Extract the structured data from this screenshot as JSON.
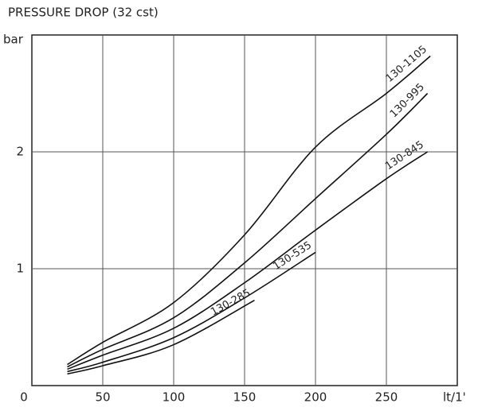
{
  "chart_data": {
    "type": "line",
    "title": "PRESSURE DROP (32 cst)",
    "y_label": "bar",
    "x_label": "lt/1'",
    "xlim": [
      0,
      300
    ],
    "ylim": [
      0,
      3
    ],
    "xticks": [
      0,
      50,
      100,
      150,
      200,
      250
    ],
    "yticks": [
      1,
      2
    ],
    "grid": true,
    "series": [
      {
        "name": "130-1105",
        "color": "#111111",
        "x": [
          25,
          50,
          100,
          150,
          200,
          250,
          281
        ],
        "values": [
          0.18,
          0.37,
          0.71,
          1.29,
          2.04,
          2.5,
          2.82
        ]
      },
      {
        "name": "130-995",
        "color": "#111111",
        "x": [
          25,
          50,
          100,
          150,
          200,
          250,
          279
        ],
        "values": [
          0.16,
          0.31,
          0.58,
          1.05,
          1.6,
          2.15,
          2.5
        ]
      },
      {
        "name": "130-845",
        "color": "#111111",
        "x": [
          25,
          50,
          100,
          150,
          200,
          250,
          279
        ],
        "values": [
          0.14,
          0.26,
          0.49,
          0.88,
          1.33,
          1.77,
          2.0
        ]
      },
      {
        "name": "130-535",
        "color": "#111111",
        "x": [
          25,
          50,
          100,
          150,
          200
        ],
        "values": [
          0.12,
          0.2,
          0.41,
          0.75,
          1.14
        ]
      },
      {
        "name": "130-285",
        "color": "#111111",
        "x": [
          25,
          50,
          100,
          157
        ],
        "values": [
          0.1,
          0.17,
          0.35,
          0.73
        ]
      }
    ]
  }
}
